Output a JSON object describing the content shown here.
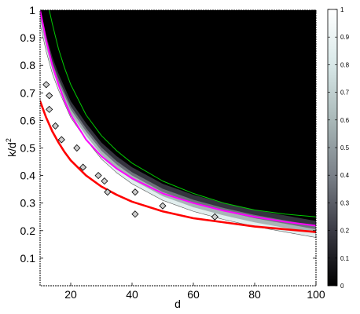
{
  "chart_data": {
    "type": "heatmap",
    "title": "",
    "xlabel": "d",
    "ylabel_main": "k/d",
    "ylabel_sup": "2",
    "xlim": [
      10,
      100
    ],
    "ylim": [
      0,
      1
    ],
    "x_ticks": [
      20,
      40,
      60,
      80,
      100
    ],
    "y_ticks": [
      0.1,
      0.2,
      0.3,
      0.4,
      0.5,
      0.6,
      0.7,
      0.8,
      0.9,
      1
    ],
    "y_tick_labels": [
      "0.1",
      "0.2",
      "0.3",
      "0.4",
      "0.5",
      "0.6",
      "0.7",
      "0.8",
      "0.9",
      "1"
    ],
    "colorbar": {
      "range": [
        0,
        1
      ],
      "ticks": [
        0,
        0.1,
        0.2,
        0.3,
        0.4,
        0.5,
        0.6,
        0.7,
        0.8,
        0.9,
        1
      ],
      "tick_labels": [
        "0",
        "0.1",
        "0.2",
        "0.3",
        "0.4",
        "0.5",
        "0.6",
        "0.7",
        "0.8",
        "0.9",
        "1"
      ],
      "colormap": [
        "#000000",
        "#3a3a44",
        "#7a8088",
        "#a9b8b8",
        "#d8e8e8",
        "#ffffff"
      ]
    },
    "transition_boundary": {
      "x": [
        10,
        12,
        14,
        16,
        18,
        20,
        25,
        30,
        35,
        40,
        50,
        60,
        70,
        80,
        90,
        100
      ],
      "y": [
        1.0,
        0.9,
        0.82,
        0.76,
        0.71,
        0.66,
        0.58,
        0.51,
        0.46,
        0.42,
        0.36,
        0.32,
        0.29,
        0.265,
        0.245,
        0.225
      ]
    },
    "series": [
      {
        "kind": "curve",
        "color": "#ff0000",
        "x": [
          10,
          12,
          14,
          16,
          18,
          20,
          25,
          30,
          35,
          40,
          50,
          60,
          70,
          80,
          90,
          100
        ],
        "y": [
          0.67,
          0.61,
          0.56,
          0.52,
          0.485,
          0.455,
          0.4,
          0.36,
          0.33,
          0.305,
          0.27,
          0.245,
          0.23,
          0.215,
          0.205,
          0.195
        ]
      },
      {
        "kind": "curve",
        "color": "#ff00ff",
        "x": [
          10,
          12,
          14,
          16,
          18,
          20,
          25,
          30,
          35,
          40,
          50,
          60,
          70,
          80,
          90,
          100
        ],
        "y": [
          1.0,
          0.89,
          0.8,
          0.73,
          0.67,
          0.62,
          0.53,
          0.47,
          0.425,
          0.39,
          0.335,
          0.3,
          0.272,
          0.25,
          0.232,
          0.218
        ]
      },
      {
        "kind": "curve",
        "color": "#00cc00",
        "x": [
          13,
          14,
          16,
          18,
          20,
          25,
          30,
          35,
          40,
          50,
          60,
          70,
          80,
          90,
          100
        ],
        "y": [
          1.0,
          0.95,
          0.86,
          0.79,
          0.73,
          0.62,
          0.545,
          0.49,
          0.445,
          0.38,
          0.335,
          0.3,
          0.275,
          0.26,
          0.25
        ]
      },
      {
        "kind": "points",
        "marker": "diamond",
        "x": [
          12,
          13,
          13,
          15,
          17,
          22,
          24,
          29,
          31,
          32,
          41,
          41,
          50,
          67
        ],
        "y": [
          0.73,
          0.69,
          0.64,
          0.58,
          0.53,
          0.5,
          0.43,
          0.4,
          0.38,
          0.34,
          0.34,
          0.26,
          0.29,
          0.25
        ]
      }
    ]
  }
}
